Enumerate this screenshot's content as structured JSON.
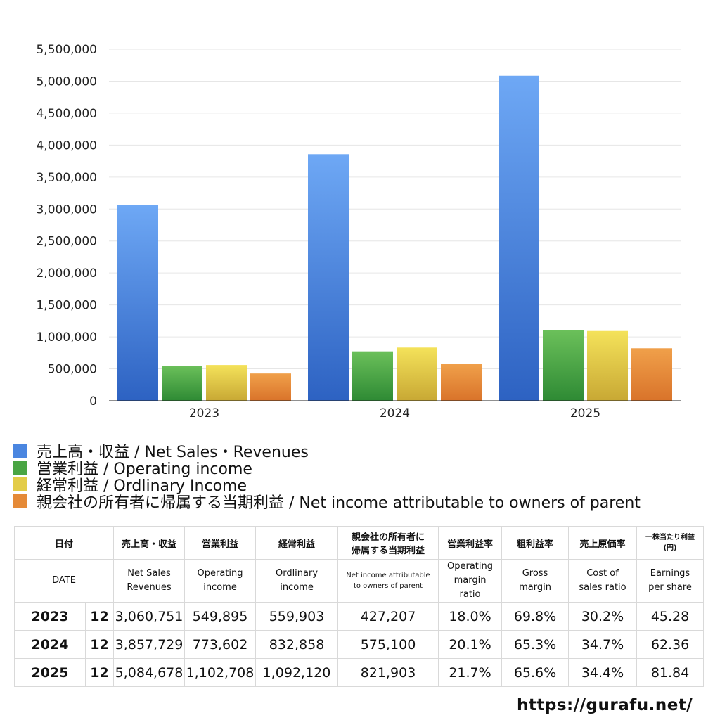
{
  "chart_data": {
    "type": "bar",
    "categories": [
      "2023",
      "2024",
      "2025"
    ],
    "ylim": [
      0,
      5500000
    ],
    "yticks": [
      "0",
      "500,000",
      "1,000,000",
      "1,500,000",
      "2,000,000",
      "2,500,000",
      "3,000,000",
      "3,500,000",
      "4,000,000",
      "4,500,000",
      "5,000,000",
      "5,500,000"
    ],
    "ytick_values": [
      0,
      500000,
      1000000,
      1500000,
      2000000,
      2500000,
      3000000,
      3500000,
      4000000,
      4500000,
      5000000,
      5500000
    ],
    "grid": true,
    "legend_position": "bottom",
    "series": [
      {
        "name": "売上高・収益 / Net Sales・Revenues",
        "values": [
          3060751,
          3857729,
          5084678
        ],
        "color_top": "#6ea8f5",
        "color_bottom": "#2d62c2"
      },
      {
        "name": "営業利益 / Operating income",
        "values": [
          549895,
          773602,
          1102708
        ],
        "color_top": "#6bc05a",
        "color_bottom": "#2e8a34"
      },
      {
        "name": "経常利益 / Ordlinary Income",
        "values": [
          559903,
          832858,
          1092120
        ],
        "color_top": "#f4e25a",
        "color_bottom": "#c8a834"
      },
      {
        "name": "親会社の所有者に帰属する当期利益 / Net income attributable to owners of parent",
        "values": [
          427207,
          575100,
          821903
        ],
        "color_top": "#f0a04a",
        "color_bottom": "#d9732a"
      }
    ]
  },
  "legend": {
    "items": [
      {
        "label": "売上高・収益 / Net Sales・Revenues",
        "color": "#4a86e0"
      },
      {
        "label": "営業利益 / Operating income",
        "color": "#4aa544"
      },
      {
        "label": "経常利益 / Ordlinary Income",
        "color": "#e3cc48"
      },
      {
        "label": "親会社の所有者に帰属する当期利益 / Net income attributable to owners of parent",
        "color": "#e58a38"
      }
    ]
  },
  "table": {
    "header_ja": {
      "date": "日付",
      "sales": "売上高・収益",
      "op": "営業利益",
      "ord": "経常利益",
      "net": "親会社の所有者に\n帰属する当期利益",
      "opm": "営業利益率",
      "gm": "粗利益率",
      "cost": "売上原価率",
      "eps": "一株当たり利益\n(円)"
    },
    "header_en": {
      "date": "DATE",
      "sales": "Net Sales\nRevenues",
      "op": "Operating\nincome",
      "ord": "Ordlinary\nincome",
      "net": "Net income attributable\nto owners of parent",
      "opm": "Operating\nmargin\nratio",
      "gm": "Gross\nmargin",
      "cost": "Cost of\nsales ratio",
      "eps": "Earnings\nper share"
    },
    "rows": [
      {
        "year": "2023",
        "month": "12",
        "sales": "3,060,751",
        "op": "549,895",
        "ord": "559,903",
        "net": "427,207",
        "opm": "18.0%",
        "gm": "69.8%",
        "cost": "30.2%",
        "eps": "45.28"
      },
      {
        "year": "2024",
        "month": "12",
        "sales": "3,857,729",
        "op": "773,602",
        "ord": "832,858",
        "net": "575,100",
        "opm": "20.1%",
        "gm": "65.3%",
        "cost": "34.7%",
        "eps": "62.36"
      },
      {
        "year": "2025",
        "month": "12",
        "sales": "5,084,678",
        "op": "1,102,708",
        "ord": "1,092,120",
        "net": "821,903",
        "opm": "21.7%",
        "gm": "65.6%",
        "cost": "34.4%",
        "eps": "81.84"
      }
    ]
  },
  "source": "https://gurafu.net/"
}
